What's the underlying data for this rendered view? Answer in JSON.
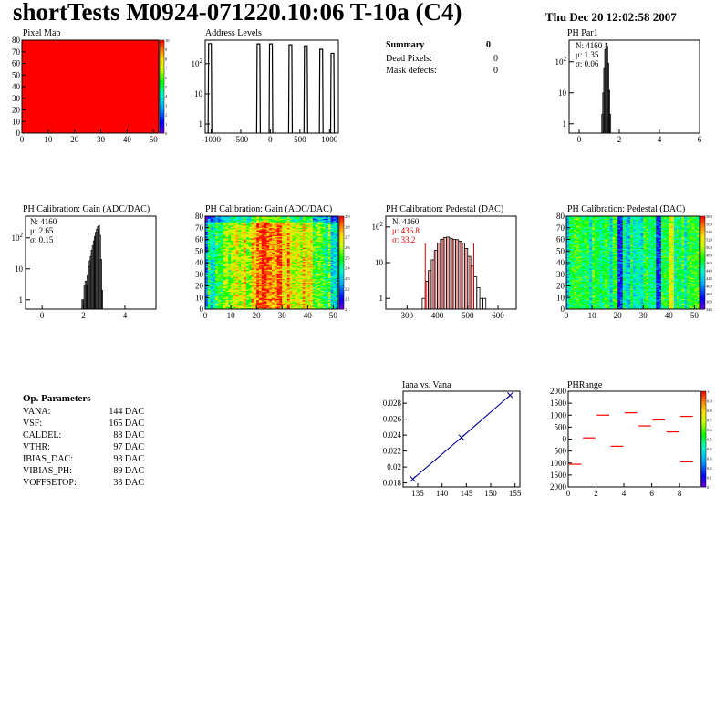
{
  "header": {
    "title": "shortTests M0924-071220.10:06 T-10a (C4)",
    "date": "Thu Dec 20 12:02:58 2007"
  },
  "summary": {
    "title": "Summary",
    "value": "0",
    "rows": [
      {
        "label": "Dead Pixels:",
        "value": "0"
      },
      {
        "label": "Mask defects:",
        "value": "0"
      }
    ]
  },
  "op_params": {
    "title": "Op. Parameters",
    "rows": [
      {
        "name": "VANA:",
        "value": "144 DAC"
      },
      {
        "name": "VSF:",
        "value": "165 DAC"
      },
      {
        "name": "CALDEL:",
        "value": "88 DAC"
      },
      {
        "name": "VTHR:",
        "value": "97 DAC"
      },
      {
        "name": "IBIAS_DAC:",
        "value": "93 DAC"
      },
      {
        "name": "VIBIAS_PH:",
        "value": "89 DAC"
      },
      {
        "name": "VOFFSETOP:",
        "value": "33 DAC"
      }
    ]
  },
  "chart_data": [
    {
      "id": "pixel-map",
      "type": "heatmap",
      "title": "Pixel Map",
      "xlim": [
        0,
        52
      ],
      "ylim": [
        0,
        80
      ],
      "xticks": [
        "0",
        "10",
        "20",
        "30",
        "40",
        "50"
      ],
      "yticks": [
        "0",
        "10",
        "20",
        "30",
        "40",
        "50",
        "60",
        "70",
        "80"
      ],
      "zlim": [
        0,
        10
      ],
      "fill": "uniform maximum (red)",
      "color_ticks": [
        "0",
        "1",
        "2",
        "3",
        "4",
        "5",
        "6",
        "7",
        "8",
        "9",
        "10"
      ]
    },
    {
      "id": "address-levels",
      "type": "bar",
      "title": "Address Levels",
      "xlim": [
        -1100,
        1150
      ],
      "ylim": [
        0.5,
        600
      ],
      "yscale": "log",
      "xticks": [
        "-1000",
        "-500",
        "0",
        "500",
        "1000"
      ],
      "yticks": [
        "1",
        "10",
        "10^2"
      ],
      "peaks": [
        {
          "x": -1020,
          "y": 460
        },
        {
          "x": -200,
          "y": 450
        },
        {
          "x": 10,
          "y": 450
        },
        {
          "x": 340,
          "y": 420
        },
        {
          "x": 600,
          "y": 390
        },
        {
          "x": 860,
          "y": 300
        },
        {
          "x": 1050,
          "y": 220
        }
      ]
    },
    {
      "id": "ph-par1",
      "type": "bar",
      "title": "PH Par1",
      "xlim": [
        -0.5,
        6
      ],
      "ylim": [
        0.5,
        500
      ],
      "yscale": "log",
      "xticks": [
        "0",
        "2",
        "4",
        "6"
      ],
      "yticks": [
        "1",
        "10",
        "10^2"
      ],
      "stats": {
        "N": "N: 4160",
        "mean": "μ: 1.35",
        "sigma": "σ: 0.06"
      },
      "x": [
        1.15,
        1.2,
        1.25,
        1.3,
        1.35,
        1.4,
        1.45,
        1.5,
        1.55
      ],
      "values": [
        2,
        10,
        60,
        250,
        400,
        320,
        90,
        12,
        2
      ]
    },
    {
      "id": "gain-hist",
      "type": "bar",
      "title": "PH Calibration: Gain (ADC/DAC)",
      "xlim": [
        -0.8,
        5.5
      ],
      "ylim": [
        0.5,
        500
      ],
      "yscale": "log",
      "xticks": [
        "0",
        "2",
        "4"
      ],
      "yticks": [
        "1",
        "10",
        "10^2"
      ],
      "stats": {
        "N": "N: 4160",
        "mean": "μ: 2.65",
        "sigma": "σ: 0.15"
      },
      "x": [
        1.95,
        2.0,
        2.05,
        2.1,
        2.15,
        2.2,
        2.25,
        2.3,
        2.35,
        2.4,
        2.45,
        2.5,
        2.55,
        2.6,
        2.65,
        2.7,
        2.75,
        2.8,
        2.85,
        2.9
      ],
      "values": [
        1,
        1,
        3,
        4,
        3,
        6,
        12,
        18,
        25,
        40,
        55,
        80,
        110,
        150,
        190,
        230,
        250,
        120,
        20,
        2
      ]
    },
    {
      "id": "gain-map",
      "type": "heatmap",
      "title": "PH Calibration: Gain (ADC/DAC)",
      "xlim": [
        0,
        52
      ],
      "ylim": [
        0,
        80
      ],
      "zlim": [
        2.0,
        2.9
      ],
      "xticks": [
        "0",
        "10",
        "20",
        "30",
        "40",
        "50"
      ],
      "yticks": [
        "0",
        "10",
        "20",
        "30",
        "40",
        "50",
        "60",
        "70",
        "80"
      ],
      "color_ticks": [
        "2",
        "2.1",
        "2.2",
        "2.3",
        "2.4",
        "2.5",
        "2.6",
        "2.7",
        "2.8",
        "2.9"
      ]
    },
    {
      "id": "pedestal-hist",
      "type": "bar",
      "title": "PH Calibration: Pedestal (DAC)",
      "xlim": [
        230,
        660
      ],
      "ylim": [
        0.5,
        200
      ],
      "yscale": "log",
      "xticks": [
        "300",
        "400",
        "500",
        "600"
      ],
      "yticks": [
        "1",
        "10",
        "10^2"
      ],
      "stats": {
        "N": "N: 4160",
        "mean": "μ: 436.8",
        "sigma": "σ: 33.2"
      },
      "fit_range": [
        360,
        520
      ],
      "x": [
        355,
        365,
        375,
        385,
        395,
        405,
        415,
        425,
        435,
        445,
        455,
        465,
        475,
        485,
        495,
        505,
        515,
        525,
        535,
        545,
        555
      ],
      "values": [
        1,
        3,
        6,
        12,
        22,
        35,
        45,
        50,
        52,
        48,
        45,
        44,
        40,
        35,
        25,
        15,
        8,
        4,
        2,
        1,
        1
      ]
    },
    {
      "id": "pedestal-map",
      "type": "heatmap",
      "title": "PH Calibration: Pedestal (DAC)",
      "xlim": [
        0,
        52
      ],
      "ylim": [
        0,
        80
      ],
      "zlim": [
        340,
        580
      ],
      "xticks": [
        "0",
        "10",
        "20",
        "30",
        "40",
        "50"
      ],
      "yticks": [
        "0",
        "10",
        "20",
        "30",
        "40",
        "50",
        "60",
        "70",
        "80"
      ],
      "color_ticks": [
        "340",
        "360",
        "380",
        "400",
        "420",
        "440",
        "460",
        "480",
        "500",
        "520",
        "540",
        "560",
        "580"
      ]
    },
    {
      "id": "iana-vana",
      "type": "line",
      "title": "Iana vs. Vana",
      "xlim": [
        132,
        156
      ],
      "ylim": [
        0.0175,
        0.0295
      ],
      "xticks": [
        "135",
        "140",
        "145",
        "150",
        "155"
      ],
      "yticks": [
        "0.018",
        "0.02",
        "0.022",
        "0.024",
        "0.026",
        "0.028"
      ],
      "x": [
        134,
        144,
        154
      ],
      "y": [
        0.0185,
        0.0237,
        0.029
      ]
    },
    {
      "id": "ph-range",
      "type": "scatter",
      "title": "PHRange",
      "xlim": [
        0,
        9.5
      ],
      "ylim": [
        -2000,
        2000
      ],
      "zlim": [
        0,
        1
      ],
      "xticks": [
        "0",
        "2",
        "4",
        "6",
        "8"
      ],
      "yticks": [
        "2000",
        "1500",
        "1000",
        "500",
        "0",
        "500",
        "1000",
        "1500",
        "2000"
      ],
      "color_ticks": [
        "0",
        "0.1",
        "0.2",
        "0.3",
        "0.4",
        "0.5",
        "0.6",
        "0.7",
        "0.8",
        "0.9",
        "1"
      ],
      "segments": [
        {
          "x": 0.5,
          "y": -1050
        },
        {
          "x": 1.5,
          "y": 50
        },
        {
          "x": 2.5,
          "y": 1000
        },
        {
          "x": 3.5,
          "y": -300
        },
        {
          "x": 4.5,
          "y": 1100
        },
        {
          "x": 5.5,
          "y": 550
        },
        {
          "x": 6.5,
          "y": 800
        },
        {
          "x": 7.5,
          "y": 300
        },
        {
          "x": 8.5,
          "y": 950
        },
        {
          "x": 8.5,
          "y": -950
        }
      ]
    }
  ]
}
